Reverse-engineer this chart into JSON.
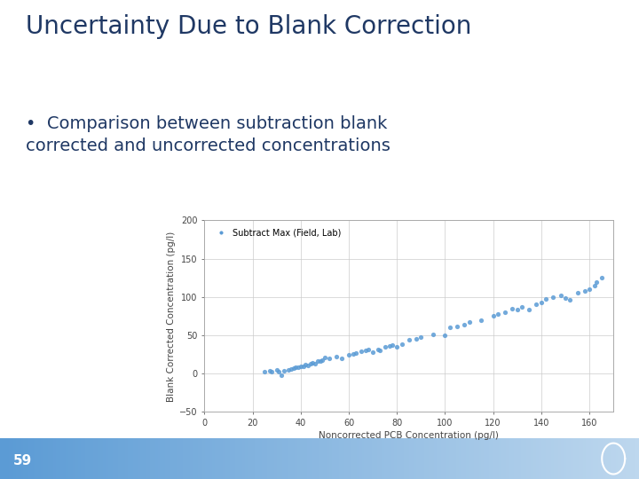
{
  "title": "Uncertainty Due to Blank Correction",
  "bullet_text": "Comparison between subtraction blank\ncorrected and uncorrected concentrations",
  "xlabel": "Noncorrected PCB Concentration (pg/l)",
  "ylabel": "Blank Corrected Concentration (pg/l)",
  "legend_label": "Subtract Max (Field, Lab)",
  "title_color": "#1F3864",
  "subtitle_color": "#1F3864",
  "dot_color": "#5B9BD5",
  "footer_color_left": "#7FB3D3",
  "footer_color_right": "#B8D4E8",
  "xlim": [
    0,
    170
  ],
  "ylim": [
    -50,
    200
  ],
  "xticks": [
    0,
    20,
    40,
    60,
    80,
    100,
    120,
    140,
    160
  ],
  "yticks": [
    -50,
    0,
    50,
    100,
    150,
    200
  ],
  "page_num": "59",
  "scatter_x": [
    25,
    27,
    28,
    30,
    31,
    32,
    33,
    35,
    36,
    37,
    38,
    39,
    40,
    41,
    42,
    43,
    44,
    45,
    46,
    47,
    48,
    49,
    50,
    52,
    55,
    57,
    60,
    62,
    63,
    65,
    67,
    68,
    70,
    72,
    73,
    75,
    77,
    78,
    80,
    82,
    85,
    88,
    90,
    95,
    100,
    102,
    105,
    108,
    110,
    115,
    120,
    122,
    125,
    128,
    130,
    132,
    135,
    138,
    140,
    142,
    145,
    148,
    150,
    152,
    155,
    158,
    160,
    162,
    163,
    165
  ],
  "scatter_y": [
    3,
    4,
    2,
    5,
    3,
    -2,
    4,
    5,
    6,
    7,
    8,
    8,
    9,
    10,
    12,
    11,
    13,
    14,
    13,
    16,
    17,
    18,
    21,
    20,
    22,
    20,
    24,
    26,
    27,
    29,
    30,
    31,
    28,
    32,
    30,
    35,
    36,
    37,
    35,
    38,
    44,
    45,
    48,
    51,
    50,
    60,
    62,
    64,
    67,
    70,
    75,
    78,
    80,
    85,
    84,
    87,
    83,
    90,
    93,
    97,
    100,
    102,
    99,
    96,
    105,
    108,
    110,
    115,
    120,
    125
  ]
}
